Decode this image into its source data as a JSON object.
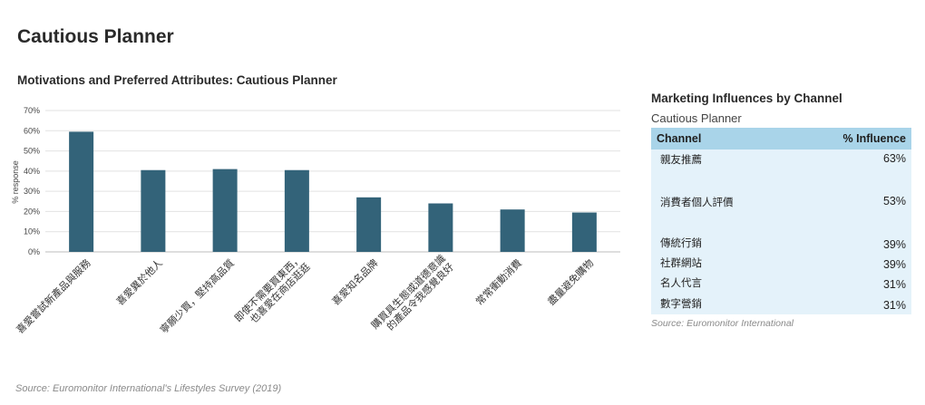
{
  "page": {
    "title": "Cautious Planner",
    "source": "Source: Euromonitor International's Lifestyles Survey (2019)"
  },
  "chart_data": {
    "type": "bar",
    "title": "Motivations and Preferred Attributes: Cautious Planner",
    "ylabel": "% response",
    "xlabel": "",
    "ylim": [
      0,
      70
    ],
    "yticks": [
      "0%",
      "10%",
      "20%",
      "30%",
      "40%",
      "50%",
      "60%",
      "70%"
    ],
    "grid": true,
    "bar_color": "#336379",
    "categories": [
      [
        "喜愛嘗試新產品與服務"
      ],
      [
        "喜愛異於他人"
      ],
      [
        "寧願少買，堅持高品質"
      ],
      [
        "即使不需要買東西，",
        "也喜愛在商店逛逛"
      ],
      [
        "喜愛知名品牌"
      ],
      [
        "購買具生態或道德意識",
        "的產品令我感覺良好"
      ],
      [
        "常常衝動消費"
      ],
      [
        "盡量避免購物"
      ]
    ],
    "values": [
      59.5,
      40.5,
      41,
      40.5,
      27,
      24,
      21,
      19.5
    ]
  },
  "influences": {
    "title": "Marketing Influences by Channel",
    "subtitle": "Cautious Planner",
    "headers": {
      "channel": "Channel",
      "influence": "% Influence"
    },
    "rows": [
      {
        "channel": "親友推薦",
        "value": "63%"
      },
      {
        "channel": "消費者個人評價",
        "value": "53%"
      },
      {
        "channel": "傳統行銷",
        "value": "39%"
      },
      {
        "channel": "社群網站",
        "value": "39%"
      },
      {
        "channel": "名人代言",
        "value": "31%"
      },
      {
        "channel": "數字營銷",
        "value": "31%"
      }
    ],
    "source": "Source: Euromonitor International"
  }
}
